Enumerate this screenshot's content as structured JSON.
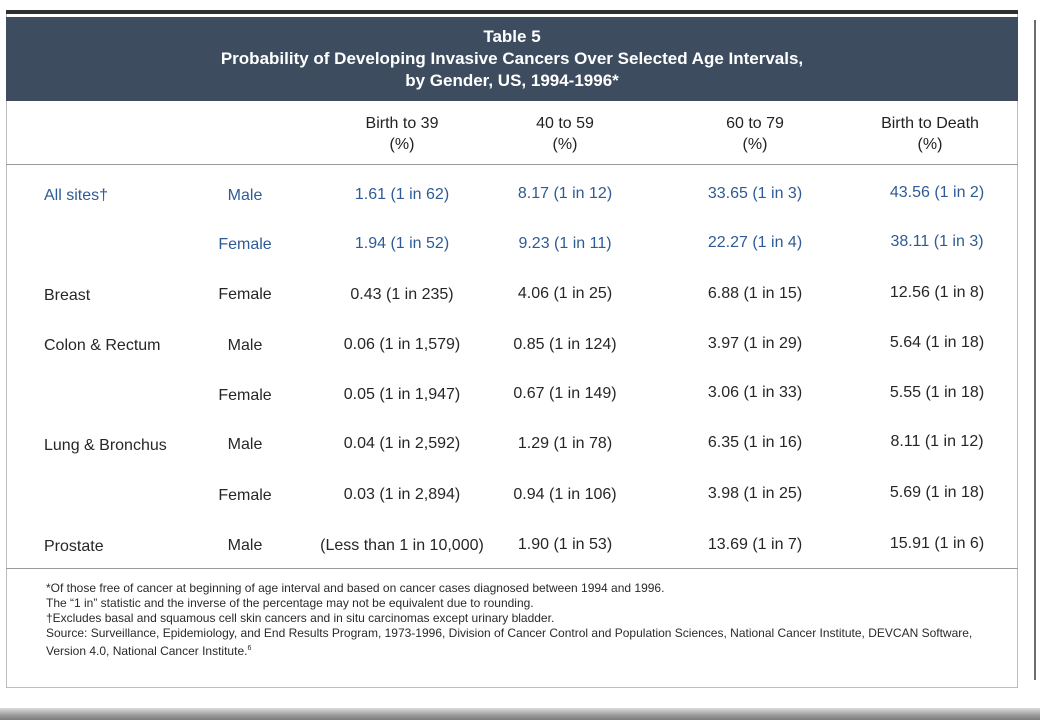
{
  "title": {
    "line1": "Table 5",
    "line2": "Probability of Developing Invasive Cancers Over Selected Age Intervals,",
    "line3": "by Gender, US, 1994-1996*"
  },
  "columns": [
    {
      "label": "Birth to 39",
      "unit": "(%)"
    },
    {
      "label": "40 to 59",
      "unit": "(%)"
    },
    {
      "label": "60 to 79",
      "unit": "(%)"
    },
    {
      "label": "Birth to Death",
      "unit": "(%)"
    }
  ],
  "rows": [
    {
      "site": "All sites†",
      "gender": "Male",
      "values": [
        "1.61 (1 in 62)",
        "8.17 (1 in 12)",
        "33.65 (1 in 3)",
        "43.56 (1 in 2)"
      ]
    },
    {
      "site": "",
      "gender": "Female",
      "values": [
        "1.94 (1 in 52)",
        "9.23 (1 in 11)",
        "22.27 (1 in 4)",
        "38.11 (1 in 3)"
      ]
    },
    {
      "site": "Breast",
      "gender": "Female",
      "values": [
        "0.43 (1 in 235)",
        "4.06 (1 in 25)",
        "6.88 (1 in 15)",
        "12.56 (1 in 8)"
      ]
    },
    {
      "site": "Colon & Rectum",
      "gender": "Male",
      "values": [
        "0.06 (1 in 1,579)",
        "0.85 (1 in 124)",
        "3.97 (1 in 29)",
        "5.64 (1 in 18)"
      ]
    },
    {
      "site": "",
      "gender": "Female",
      "values": [
        "0.05 (1 in 1,947)",
        "0.67 (1 in 149)",
        "3.06 (1 in 33)",
        "5.55 (1 in 18)"
      ]
    },
    {
      "site": "Lung & Bronchus",
      "gender": "Male",
      "values": [
        "0.04 (1 in 2,592)",
        "1.29 (1 in 78)",
        "6.35 (1 in 16)",
        "8.11 (1 in 12)"
      ]
    },
    {
      "site": "",
      "gender": "Female",
      "values": [
        "0.03 (1 in 2,894)",
        "0.94 (1 in 106)",
        "3.98 (1 in 25)",
        "5.69 (1 in 18)"
      ]
    },
    {
      "site": "Prostate",
      "gender": "Male",
      "values": [
        "(Less than 1 in 10,000)",
        "1.90 (1 in 53)",
        "13.69 (1 in 7)",
        "15.91 (1 in 6)"
      ]
    }
  ],
  "footnotes": {
    "line1": "*Of those free of cancer at beginning of age interval and based on cancer cases diagnosed between 1994 and 1996.",
    "line2": "The “1 in” statistic and the inverse of the percentage may not be equivalent due to rounding.",
    "line3": "†Excludes basal and squamous cell skin cancers and in situ carcinomas except urinary bladder.",
    "line4": "Source: Surveillance, Epidemiology, and End Results Program, 1973-1996, Division of Cancer Control and Population Sciences, National Cancer Institute, DEVCAN Software,",
    "line5": "Version 4.0, National Cancer Institute.",
    "ref": "6"
  },
  "colors": {
    "banner": "#3d4c5f",
    "highlight_text": "#2e5b95"
  }
}
